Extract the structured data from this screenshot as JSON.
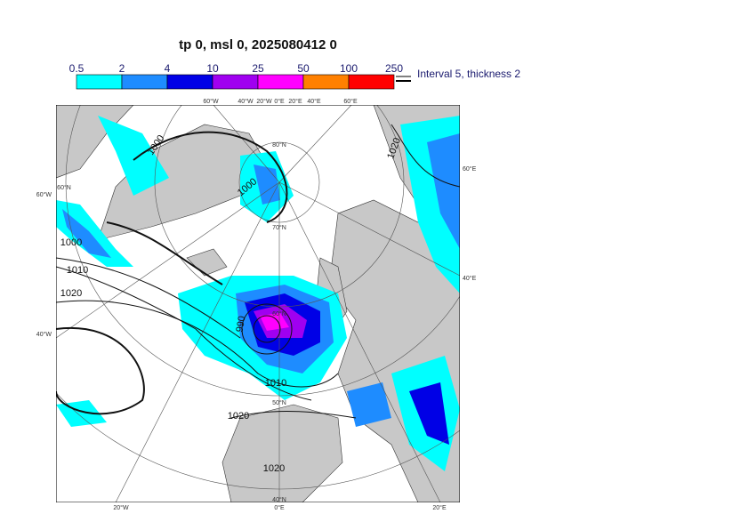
{
  "title": "tp 0, msl 0, 2025080412 0",
  "colorbar": {
    "labels": [
      "0.5",
      "2",
      "4",
      "10",
      "25",
      "50",
      "100",
      "250"
    ],
    "colors": [
      "#00ffff",
      "#1e8cff",
      "#0000e6",
      "#a000f0",
      "#ff00ff",
      "#ff8000",
      "#ff0000"
    ]
  },
  "legend": "Interval 5, thickness 2",
  "grid_labels": [
    "60°W",
    "40°W",
    "20°W",
    "0°E",
    "20°E",
    "40°E",
    "60°E",
    "60°W",
    "40°W",
    "60°E",
    "40°E",
    "20°W",
    "0°E",
    "20°E",
    "80°N",
    "70°N",
    "60°N",
    "50°N",
    "40°N",
    "60°N"
  ],
  "contour_labels": [
    "1000",
    "1000",
    "1000",
    "1010",
    "1020",
    "990",
    "1010",
    "1020",
    "1020",
    "1020"
  ]
}
